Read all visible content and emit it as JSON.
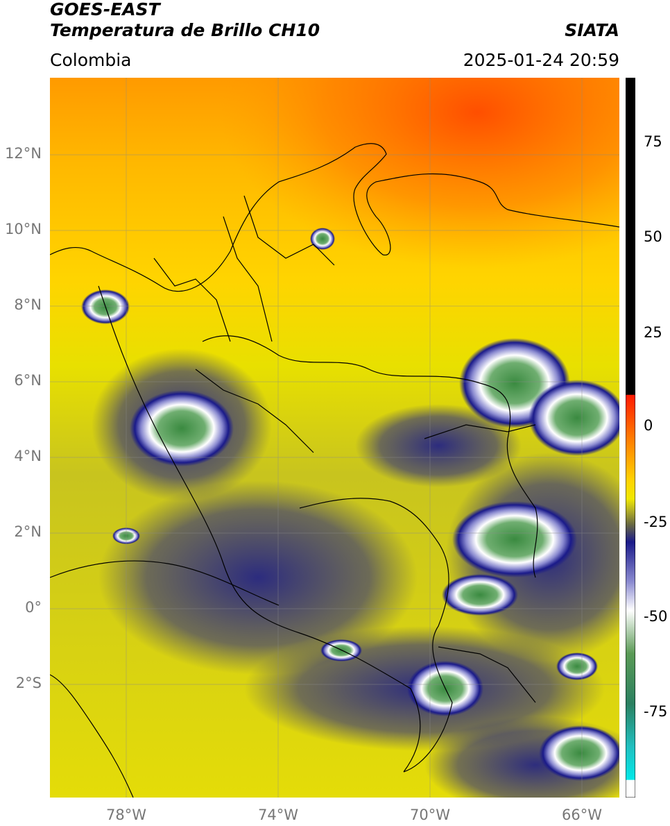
{
  "header": {
    "satellite": "GOES-EAST",
    "product": "Temperatura de Brillo CH10",
    "brand": "SIATA",
    "region": "Colombia",
    "datetime": "2025-01-24 20:59"
  },
  "map": {
    "lat_labels": [
      "12°N",
      "10°N",
      "8°N",
      "6°N",
      "4°N",
      "2°N",
      "0°",
      "2°S"
    ],
    "lon_labels": [
      "78°W",
      "74°W",
      "70°W",
      "66°W"
    ],
    "lat_range": [
      -5,
      14
    ],
    "lon_range": [
      -80,
      -65
    ]
  },
  "colorbar": {
    "ticks": [
      "75",
      "50",
      "25",
      "0",
      "-25",
      "-50",
      "-75"
    ],
    "range": [
      -95,
      90
    ],
    "colors": {
      "black": "#000000",
      "red": "#ff2200",
      "orange": "#ff9900",
      "yellow": "#f8ee00",
      "olive": "#b8b424",
      "navy": "#1a1a8a",
      "white": "#ffffff",
      "green": "#3a8a40",
      "cyan": "#00e0e0"
    }
  }
}
